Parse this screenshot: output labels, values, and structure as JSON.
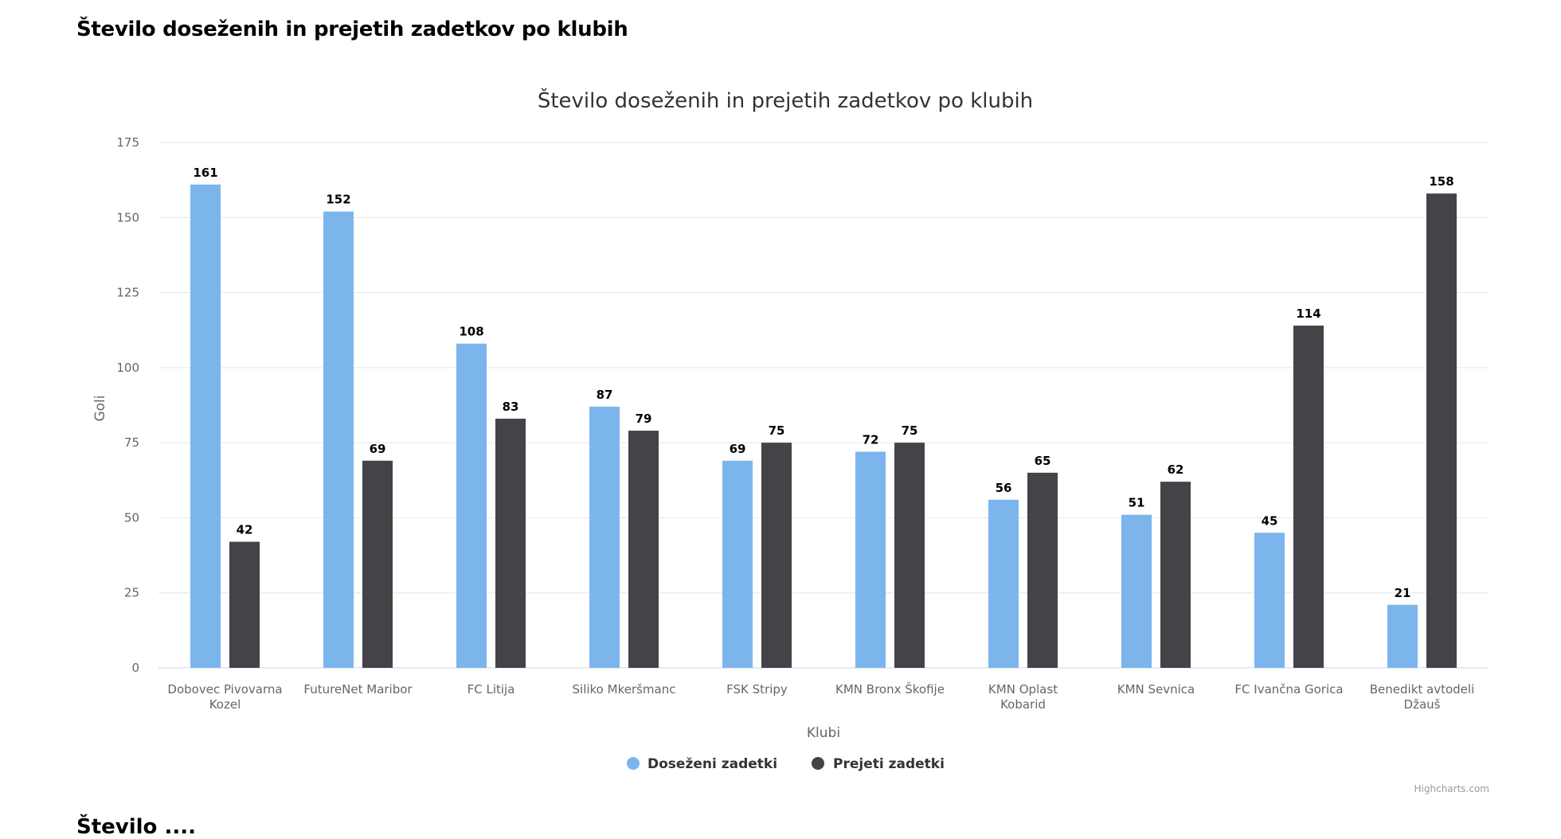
{
  "page": {
    "heading": "Število doseženih in prejetih zadetkov po klubih",
    "next_heading": "Število ...."
  },
  "chart_data": {
    "type": "bar",
    "title": "Število doseženih in prejetih zadetkov po klubih",
    "xlabel": "Klubi",
    "ylabel": "Goli",
    "ylim": [
      0,
      175
    ],
    "yticks": [
      0,
      25,
      50,
      75,
      100,
      125,
      150,
      175
    ],
    "grid": true,
    "legend_position": "bottom",
    "categories": [
      [
        "Dobovec Pivovarna",
        "Kozel"
      ],
      [
        "FutureNet Maribor"
      ],
      [
        "FC Litija"
      ],
      [
        "Siliko Mkeršmanc"
      ],
      [
        "FSK Stripy"
      ],
      [
        "KMN Bronx Škofije"
      ],
      [
        "KMN Oplast",
        "Kobarid"
      ],
      [
        "KMN Sevnica"
      ],
      [
        "FC Ivančna Gorica"
      ],
      [
        "Benedikt avtodeli",
        "Džauš"
      ]
    ],
    "series": [
      {
        "name": "Doseženi zadetki",
        "color": "#7cb5ec",
        "values": [
          161,
          152,
          108,
          87,
          69,
          72,
          56,
          51,
          45,
          21
        ]
      },
      {
        "name": "Prejeti zadetki",
        "color": "#434348",
        "values": [
          42,
          69,
          83,
          79,
          75,
          75,
          65,
          62,
          114,
          158
        ]
      }
    ],
    "credits": "Highcharts.com"
  }
}
